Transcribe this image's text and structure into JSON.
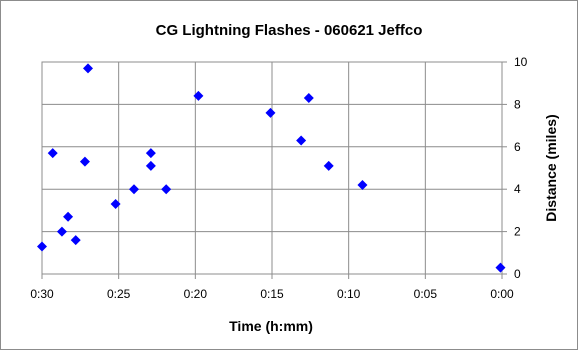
{
  "chart_data": {
    "type": "scatter",
    "title": "CG Lightning Flashes - 060621 Jeffco",
    "xlabel": "Time (h:mm)",
    "ylabel": "Distance (miles)",
    "x_axis": {
      "unit": "minutes",
      "reversed": true,
      "range": [
        30,
        0
      ],
      "ticks": [
        30,
        25,
        20,
        15,
        10,
        5,
        0
      ],
      "tick_labels": [
        "0:30",
        "0:25",
        "0:20",
        "0:15",
        "0:10",
        "0:05",
        "0:00"
      ]
    },
    "y_axis": {
      "position": "right",
      "range": [
        0,
        10
      ],
      "ticks": [
        0,
        2,
        4,
        6,
        8,
        10
      ],
      "tick_labels": [
        "0",
        "2",
        "4",
        "6",
        "8",
        "10"
      ]
    },
    "grid": true,
    "legend": "none",
    "marker": {
      "shape": "diamond",
      "color": "#0000ff"
    },
    "points": [
      {
        "x": 30.0,
        "y": 1.3
      },
      {
        "x": 29.3,
        "y": 5.7
      },
      {
        "x": 28.7,
        "y": 2.0
      },
      {
        "x": 28.3,
        "y": 2.7
      },
      {
        "x": 27.8,
        "y": 1.6
      },
      {
        "x": 27.0,
        "y": 9.7
      },
      {
        "x": 27.2,
        "y": 5.3
      },
      {
        "x": 25.2,
        "y": 3.3
      },
      {
        "x": 24.0,
        "y": 4.0
      },
      {
        "x": 22.9,
        "y": 5.7
      },
      {
        "x": 22.9,
        "y": 5.1
      },
      {
        "x": 21.9,
        "y": 4.0
      },
      {
        "x": 19.8,
        "y": 8.4
      },
      {
        "x": 15.1,
        "y": 7.6
      },
      {
        "x": 13.1,
        "y": 6.3
      },
      {
        "x": 12.6,
        "y": 8.3
      },
      {
        "x": 11.3,
        "y": 5.1
      },
      {
        "x": 9.1,
        "y": 4.2
      },
      {
        "x": 0.1,
        "y": 0.3
      }
    ]
  }
}
